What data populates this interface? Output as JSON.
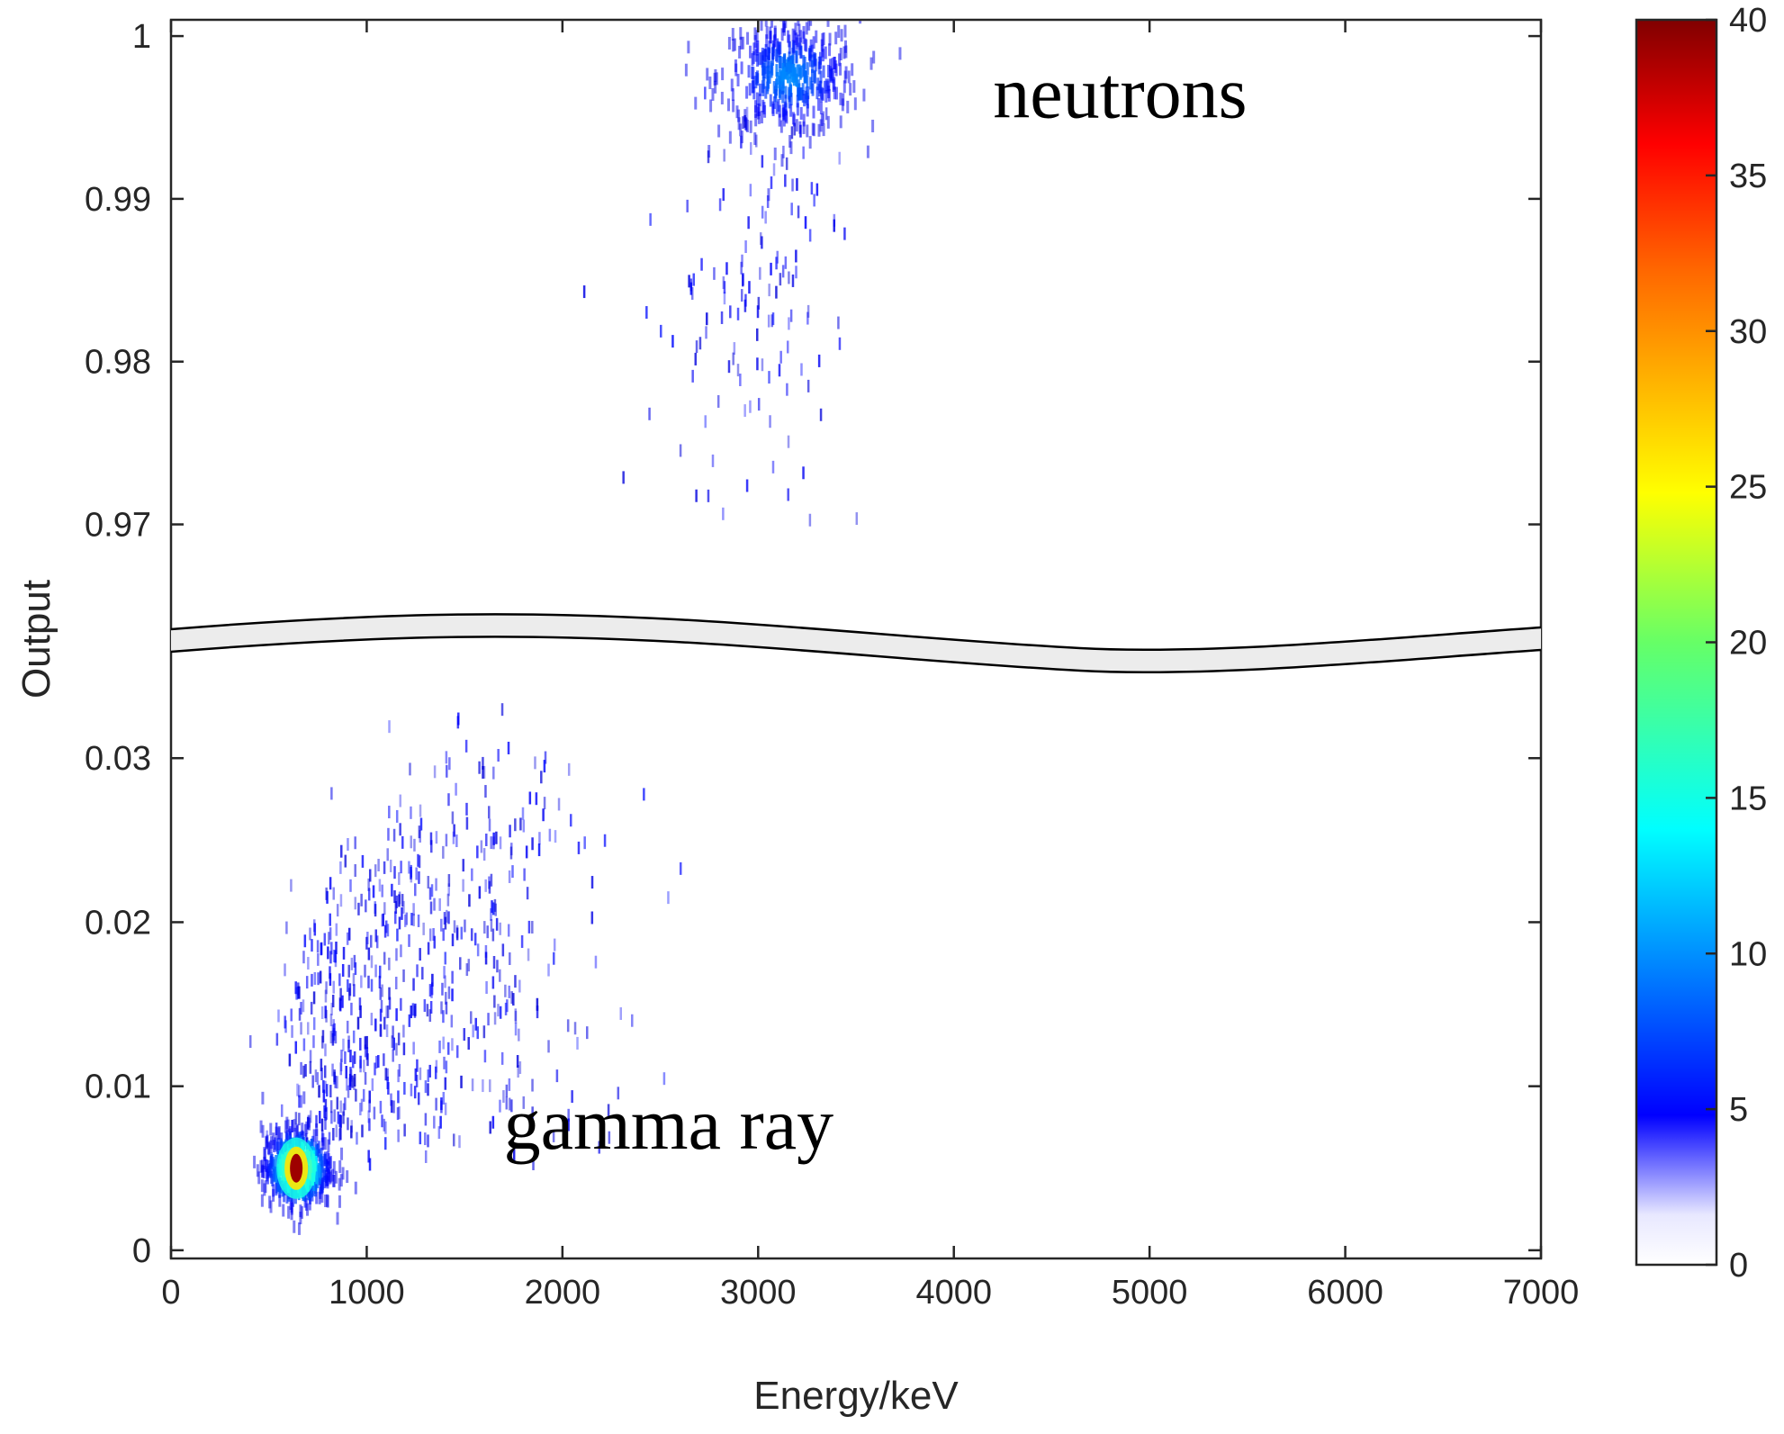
{
  "chart_data": {
    "type": "heatmap",
    "xlabel": "Energy/keV",
    "ylabel": "Output",
    "xlim": [
      0,
      7000
    ],
    "x_ticks": [
      0,
      1000,
      2000,
      3000,
      4000,
      5000,
      6000,
      7000
    ],
    "x_tick_labels": [
      "0",
      "1000",
      "2000",
      "3000",
      "4000",
      "5000",
      "6000",
      "7000"
    ],
    "y_axis_break": true,
    "y_segments": [
      {
        "name": "upper",
        "ylim": [
          0.9645,
          1.001
        ],
        "ticks": [
          0.97,
          0.98,
          0.99,
          1
        ],
        "tick_labels": [
          "0.97",
          "0.98",
          "0.99",
          "1"
        ]
      },
      {
        "name": "lower",
        "ylim": [
          -0.0005,
          0.0355
        ],
        "ticks": [
          0,
          0.01,
          0.02,
          0.03
        ],
        "tick_labels": [
          "0",
          "0.01",
          "0.02",
          "0.03"
        ]
      }
    ],
    "colorbar": {
      "colormap": "jet",
      "range": [
        0,
        40
      ],
      "ticks": [
        0,
        5,
        10,
        15,
        20,
        25,
        30,
        35,
        40
      ],
      "tick_labels": [
        "0",
        "5",
        "10",
        "15",
        "20",
        "25",
        "30",
        "35",
        "40"
      ]
    },
    "clusters": [
      {
        "label": "neutrons",
        "segment": "upper",
        "x_center": 3150,
        "x_spread": 180,
        "y_center": 0.9975,
        "y_spread": 0.0018,
        "peak_count": 8,
        "points": 420,
        "tail": {
          "x_from": 3100,
          "x_to": 2850,
          "y_from": 0.995,
          "y_to": 0.966,
          "points": 140
        }
      },
      {
        "label": "gamma ray",
        "segment": "lower",
        "x_center": 640,
        "x_spread": 90,
        "y_center": 0.005,
        "y_spread": 0.0012,
        "peak_count": 40,
        "points": 500,
        "tail": {
          "x_from": 650,
          "x_to": 1800,
          "y_from": 0.006,
          "y_to": 0.034,
          "points": 650
        }
      }
    ],
    "annotations": [
      {
        "text": "neutrons",
        "x": 4200,
        "y": 0.995,
        "segment": "upper"
      },
      {
        "text": "gamma ray",
        "x": 1700,
        "y": 0.0062,
        "segment": "lower"
      }
    ],
    "grid": false
  }
}
